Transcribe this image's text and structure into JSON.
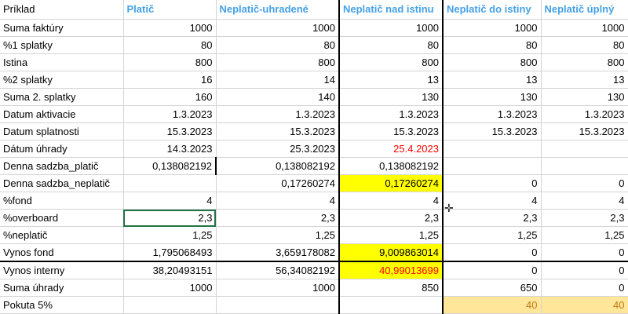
{
  "headers": [
    "Príklad",
    "Platič",
    "Neplatič-uhradené",
    "Neplatič nad istinu",
    "Neplatič do istiny",
    "Neplatič úplný"
  ],
  "rows": [
    [
      "Suma faktúry",
      "1000",
      "1000",
      "1000",
      "1000",
      "1000"
    ],
    [
      "%1 splatky",
      "80",
      "80",
      "80",
      "80",
      "80"
    ],
    [
      "Istina",
      "800",
      "800",
      "800",
      "800",
      "800"
    ],
    [
      "%2 splatky",
      "16",
      "14",
      "13",
      "13",
      "13"
    ],
    [
      "Suma 2. splatky",
      "160",
      "140",
      "130",
      "130",
      "130"
    ],
    [
      "Datum aktivacie",
      "1.3.2023",
      "1.3.2023",
      "1.3.2023",
      "1.3.2023",
      "1.3.2023"
    ],
    [
      "Datum splatnosti",
      "15.3.2023",
      "15.3.2023",
      "15.3.2023",
      "15.3.2023",
      "15.3.2023"
    ],
    [
      "Dátum úhrady",
      "14.3.2023",
      "25.3.2023",
      "25.4.2023",
      "",
      ""
    ],
    [
      "Denna sadzba_platič",
      "0,138082192",
      "0,138082192",
      "0,138082192",
      "",
      ""
    ],
    [
      "Denna sadzba_neplatič",
      "",
      "0,17260274",
      "0,17260274",
      "0",
      "0"
    ],
    [
      "%fond",
      "4",
      "4",
      "4",
      "4",
      "4"
    ],
    [
      "%overboard",
      "2,3",
      "2,3",
      "2,3",
      "2,3",
      "2,3"
    ],
    [
      "%neplatič",
      "1,25",
      "1,25",
      "1,25",
      "1,25",
      "1,25"
    ],
    [
      "Vynos fond",
      "1,795068493",
      "3,659178082",
      "9,009863014",
      "0",
      "0"
    ],
    [
      "Vynos interny",
      "38,20493151",
      "56,34082192",
      "40,99013699",
      "0",
      "0"
    ],
    [
      "Suma úhrady",
      "1000",
      "1000",
      "850",
      "650",
      "0"
    ],
    [
      "Pokuta 5%",
      "",
      "",
      "",
      "40",
      "40"
    ]
  ],
  "colors": {
    "header_text": "#44a1e6",
    "highlight_yellow": "#ffff00",
    "highlight_peach": "#ffe699",
    "peach_text": "#c07a1a",
    "red_text": "#ff0000",
    "selection_border": "#217346"
  },
  "cursor_icon": "move-cross-cursor-icon"
}
